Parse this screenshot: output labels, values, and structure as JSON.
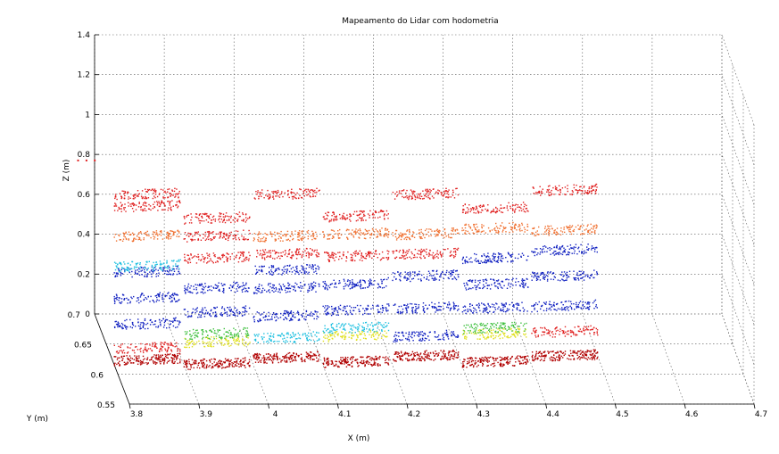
{
  "chart_data": {
    "type": "scatter",
    "title": "Mapeamento do Lidar com hodometria",
    "xlabel": "X (m)",
    "ylabel": "Y (m)",
    "zlabel": "Z (m)",
    "xlim": [
      3.8,
      4.7
    ],
    "ylim": [
      0.55,
      0.7
    ],
    "zlim": [
      0,
      1.4
    ],
    "x_ticks": [
      "3.8",
      "3.9",
      "4",
      "4.1",
      "4.2",
      "4.3",
      "4.4",
      "4.5",
      "4.6",
      "4.7"
    ],
    "y_ticks": [
      "0.55",
      "0.6",
      "0.65",
      "0.7"
    ],
    "z_ticks": [
      "0",
      "0.2",
      "0.4",
      "0.6",
      "0.8",
      "1",
      "1.2",
      "1.4"
    ],
    "grid": true,
    "colors": {
      "dark_red": "#b00000",
      "red": "#e02020",
      "orange": "#f07030",
      "blue": "#1020c0",
      "cyan": "#20c0e0",
      "yellow": "#e0e020",
      "green": "#40c040"
    },
    "clusters": [
      {
        "x": 3.85,
        "z": 0.0,
        "color": "dark_red"
      },
      {
        "x": 3.85,
        "z": 0.06,
        "color": "red"
      },
      {
        "x": 3.85,
        "z": 0.18,
        "color": "blue"
      },
      {
        "x": 3.85,
        "z": 0.31,
        "color": "blue"
      },
      {
        "x": 3.85,
        "z": 0.44,
        "color": "blue"
      },
      {
        "x": 3.85,
        "z": 0.47,
        "color": "cyan"
      },
      {
        "x": 3.85,
        "z": 0.62,
        "color": "orange"
      },
      {
        "x": 3.85,
        "z": 0.77,
        "color": "red"
      },
      {
        "x": 3.85,
        "z": 0.83,
        "color": "red"
      },
      {
        "x": 3.95,
        "z": -0.02,
        "color": "dark_red"
      },
      {
        "x": 3.95,
        "z": 0.09,
        "color": "yellow"
      },
      {
        "x": 3.95,
        "z": 0.13,
        "color": "green"
      },
      {
        "x": 3.95,
        "z": 0.24,
        "color": "blue"
      },
      {
        "x": 3.95,
        "z": 0.36,
        "color": "blue"
      },
      {
        "x": 3.95,
        "z": 0.51,
        "color": "red"
      },
      {
        "x": 3.95,
        "z": 0.62,
        "color": "red"
      },
      {
        "x": 3.95,
        "z": 0.71,
        "color": "red"
      },
      {
        "x": 4.05,
        "z": 0.01,
        "color": "dark_red"
      },
      {
        "x": 4.05,
        "z": 0.11,
        "color": "cyan"
      },
      {
        "x": 4.05,
        "z": 0.22,
        "color": "blue"
      },
      {
        "x": 4.05,
        "z": 0.36,
        "color": "blue"
      },
      {
        "x": 4.05,
        "z": 0.45,
        "color": "blue"
      },
      {
        "x": 4.05,
        "z": 0.53,
        "color": "red"
      },
      {
        "x": 4.05,
        "z": 0.62,
        "color": "orange"
      },
      {
        "x": 4.05,
        "z": 0.83,
        "color": "red"
      },
      {
        "x": 4.15,
        "z": -0.01,
        "color": "dark_red"
      },
      {
        "x": 4.15,
        "z": 0.12,
        "color": "yellow"
      },
      {
        "x": 4.15,
        "z": 0.16,
        "color": "cyan"
      },
      {
        "x": 4.15,
        "z": 0.25,
        "color": "blue"
      },
      {
        "x": 4.15,
        "z": 0.38,
        "color": "blue"
      },
      {
        "x": 4.15,
        "z": 0.52,
        "color": "red"
      },
      {
        "x": 4.15,
        "z": 0.63,
        "color": "orange"
      },
      {
        "x": 4.15,
        "z": 0.72,
        "color": "red"
      },
      {
        "x": 4.25,
        "z": 0.02,
        "color": "dark_red"
      },
      {
        "x": 4.25,
        "z": 0.12,
        "color": "blue"
      },
      {
        "x": 4.25,
        "z": 0.26,
        "color": "blue"
      },
      {
        "x": 4.25,
        "z": 0.42,
        "color": "blue"
      },
      {
        "x": 4.25,
        "z": 0.53,
        "color": "red"
      },
      {
        "x": 4.25,
        "z": 0.63,
        "color": "orange"
      },
      {
        "x": 4.25,
        "z": 0.83,
        "color": "red"
      },
      {
        "x": 4.35,
        "z": -0.01,
        "color": "dark_red"
      },
      {
        "x": 4.35,
        "z": 0.13,
        "color": "yellow"
      },
      {
        "x": 4.35,
        "z": 0.16,
        "color": "green"
      },
      {
        "x": 4.35,
        "z": 0.26,
        "color": "blue"
      },
      {
        "x": 4.35,
        "z": 0.38,
        "color": "blue"
      },
      {
        "x": 4.35,
        "z": 0.51,
        "color": "blue"
      },
      {
        "x": 4.35,
        "z": 0.66,
        "color": "orange"
      },
      {
        "x": 4.35,
        "z": 0.76,
        "color": "red"
      },
      {
        "x": 4.45,
        "z": 0.02,
        "color": "dark_red"
      },
      {
        "x": 4.45,
        "z": 0.14,
        "color": "red"
      },
      {
        "x": 4.45,
        "z": 0.27,
        "color": "blue"
      },
      {
        "x": 4.45,
        "z": 0.42,
        "color": "blue"
      },
      {
        "x": 4.45,
        "z": 0.55,
        "color": "blue"
      },
      {
        "x": 4.45,
        "z": 0.65,
        "color": "orange"
      },
      {
        "x": 4.45,
        "z": 0.85,
        "color": "red"
      }
    ],
    "outliers": [
      {
        "x": 3.75,
        "z": 1.0,
        "color": "red"
      }
    ]
  }
}
